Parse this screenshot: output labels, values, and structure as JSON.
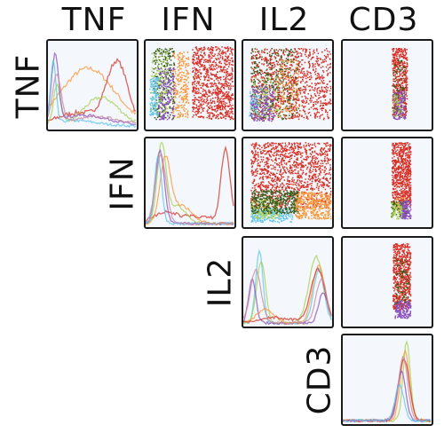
{
  "chart_data": {
    "type": "scatter",
    "variables": [
      "TNF",
      "IFN",
      "IL2",
      "CD3"
    ],
    "column_labels": [
      "TNF",
      "IFN",
      "IL2",
      "CD3"
    ],
    "row_labels": [
      "TNF",
      "IFN",
      "IL2",
      "CD3"
    ],
    "layout": "upper-triangular pair plot: histograms on diagonal, scatter plots above diagonal",
    "population_colors": {
      "red": "#d73027",
      "orange": "#f89a3c",
      "dark_green": "#3a5a1a",
      "light_green": "#a8d050",
      "purple": "#8a4fbf",
      "sky_blue": "#5ec4f0",
      "mauve": "#c88aa0"
    },
    "grid": false,
    "legend": "none"
  }
}
